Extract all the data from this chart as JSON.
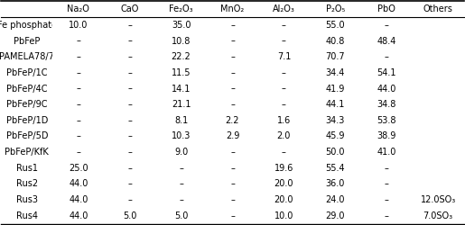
{
  "columns": [
    "Na₂O",
    "CaO",
    "Fe₂O₃",
    "MnO₂",
    "Al₂O₃",
    "P₂O₅",
    "PbO",
    "Others"
  ],
  "rows": [
    [
      "Fe phosphate",
      "10.0",
      "–",
      "35.0",
      "–",
      "–",
      "55.0",
      "–",
      ""
    ],
    [
      "PbFeP",
      "–",
      "–",
      "10.8",
      "–",
      "–",
      "40.8",
      "48.4",
      ""
    ],
    [
      "PAMELA78/7",
      "–",
      "–",
      "22.2",
      "–",
      "7.1",
      "70.7",
      "–",
      ""
    ],
    [
      "PbFeP/1C",
      "–",
      "–",
      "11.5",
      "–",
      "–",
      "34.4",
      "54.1",
      ""
    ],
    [
      "PbFeP/4C",
      "–",
      "–",
      "14.1",
      "–",
      "–",
      "41.9",
      "44.0",
      ""
    ],
    [
      "PbFeP/9C",
      "–",
      "–",
      "21.1",
      "–",
      "–",
      "44.1",
      "34.8",
      ""
    ],
    [
      "PbFeP/1D",
      "–",
      "–",
      "8.1",
      "2.2",
      "1.6",
      "34.3",
      "53.8",
      ""
    ],
    [
      "PbFeP/5D",
      "–",
      "–",
      "10.3",
      "2.9",
      "2.0",
      "45.9",
      "38.9",
      ""
    ],
    [
      "PbFeP/KfK",
      "–",
      "–",
      "9.0",
      "–",
      "–",
      "50.0",
      "41.0",
      ""
    ],
    [
      "Rus1",
      "25.0",
      "–",
      "–",
      "–",
      "19.6",
      "55.4",
      "–",
      ""
    ],
    [
      "Rus2",
      "44.0",
      "–",
      "–",
      "–",
      "20.0",
      "36.0",
      "–",
      ""
    ],
    [
      "Rus3",
      "44.0",
      "–",
      "–",
      "–",
      "20.0",
      "24.0",
      "–",
      "12.0SO₃"
    ],
    [
      "Rus4",
      "44.0",
      "5.0",
      "5.0",
      "–",
      "10.0",
      "29.0",
      "–",
      "7.0SO₃"
    ]
  ],
  "fontsize": 7.0,
  "bg_color": "white",
  "line_color": "black"
}
